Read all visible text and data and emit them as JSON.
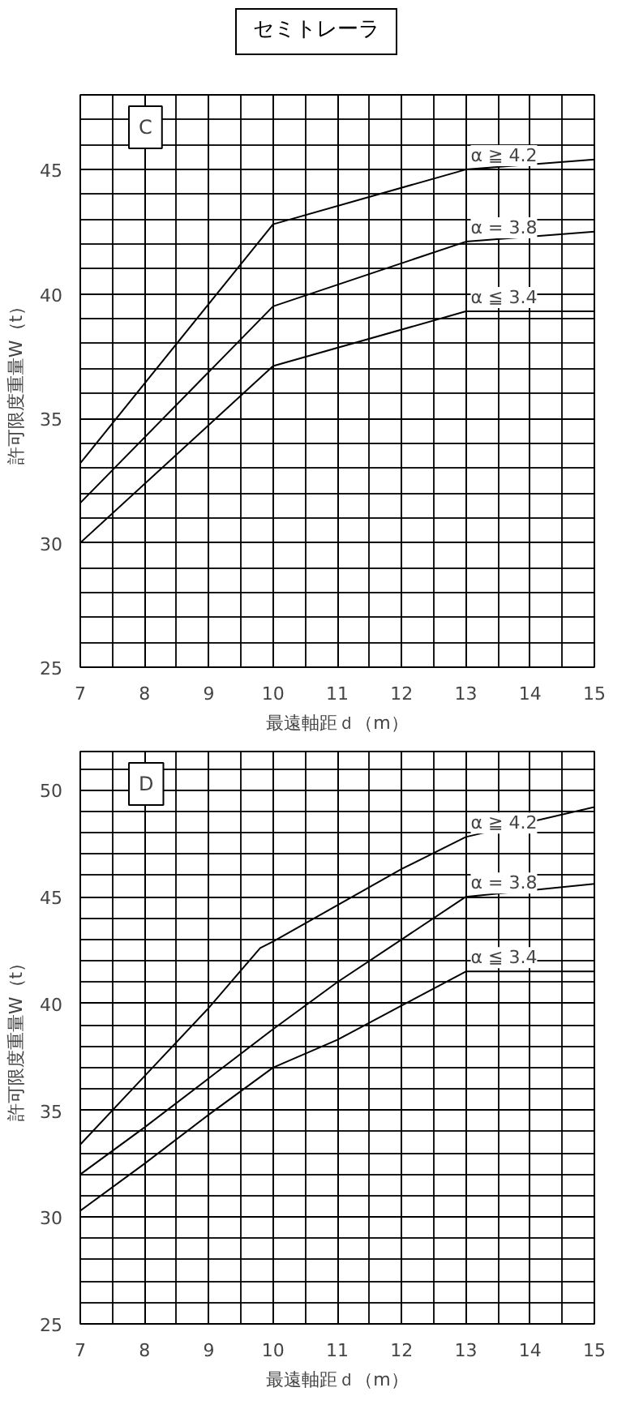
{
  "chart_data": [
    {
      "type": "line",
      "title": "セミトレーラ",
      "annotations": [
        "C"
      ],
      "xlabel": "最遠軸距ｄ（m）",
      "ylabel": "許可限度重量W（t）",
      "xlim": [
        7,
        15
      ],
      "ylim": [
        25,
        48
      ],
      "xticks": [
        7,
        8,
        9,
        10,
        11,
        12,
        13,
        14,
        15
      ],
      "yticks": [
        25,
        30,
        35,
        40,
        45
      ],
      "grid": true,
      "legend": false,
      "series": [
        {
          "name": "α ≧ 4.2",
          "color": "#000000",
          "x": [
            7,
            10,
            13,
            15
          ],
          "values": [
            33.2,
            42.8,
            45,
            45.4
          ]
        },
        {
          "name": "α = 3.8",
          "color": "#000000",
          "x": [
            7,
            10,
            13,
            15
          ],
          "values": [
            31.6,
            39.5,
            42.1,
            42.5
          ]
        },
        {
          "name": "α ≦ 3.4",
          "color": "#000000",
          "x": [
            7,
            10,
            13,
            15
          ],
          "values": [
            30,
            37.1,
            39.3,
            39.3
          ]
        }
      ]
    },
    {
      "type": "line",
      "annotations": [
        "D"
      ],
      "xlabel": "最遠軸距ｄ（m）",
      "ylabel": "許可限度重量W（t）",
      "xlim": [
        7,
        15
      ],
      "ylim": [
        25,
        51.8
      ],
      "xticks": [
        7,
        8,
        9,
        10,
        11,
        12,
        13,
        14,
        15
      ],
      "yticks": [
        25,
        30,
        35,
        40,
        45,
        50
      ],
      "grid": true,
      "legend": false,
      "series": [
        {
          "name": "α ≧ 4.2",
          "color": "#000000",
          "x": [
            7,
            8,
            9,
            9.8,
            10,
            11,
            12,
            13,
            15
          ],
          "values": [
            33.4,
            36.6,
            39.8,
            42.6,
            42.9,
            44.6,
            46.3,
            47.8,
            49.2
          ]
        },
        {
          "name": "α = 3.8",
          "color": "#000000",
          "x": [
            7,
            8,
            9,
            10,
            11,
            12,
            13,
            15
          ],
          "values": [
            32,
            34.2,
            36.5,
            38.8,
            41,
            43,
            45,
            45.6
          ]
        },
        {
          "name": "α ≦ 3.4",
          "color": "#000000",
          "x": [
            7,
            8,
            9,
            10,
            11,
            12,
            13,
            15
          ],
          "values": [
            30.3,
            32.5,
            34.8,
            37,
            38.3,
            39.9,
            41.5,
            41.5
          ]
        }
      ]
    }
  ]
}
